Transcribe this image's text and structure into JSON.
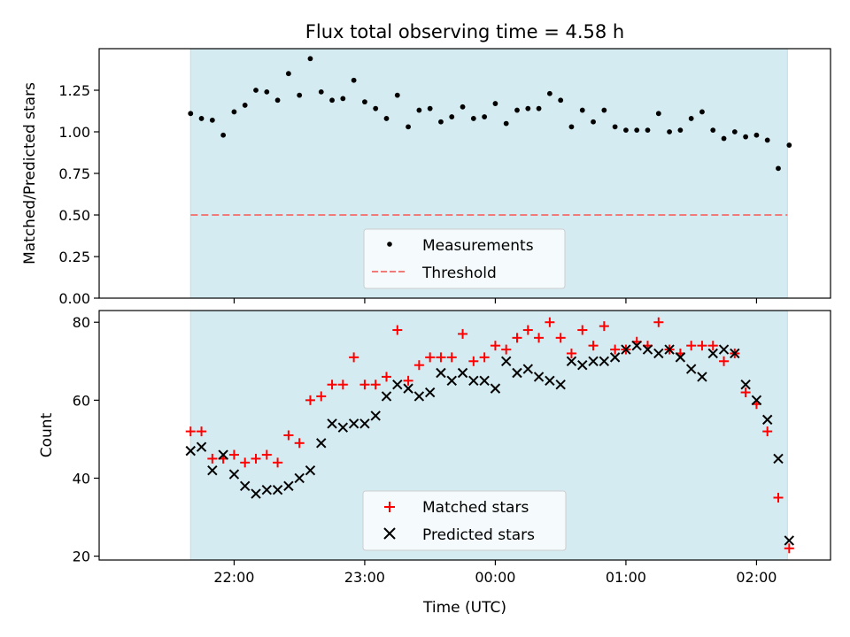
{
  "chart_data": [
    {
      "type": "scatter",
      "title": "Flux total observing time = 4.58 h",
      "xlabel": "",
      "ylabel": "Matched/Predicted stars",
      "xlim": [
        -0.35,
        2.45
      ],
      "ylim": [
        0,
        1.5
      ],
      "shaded_span": [
        0.0,
        2.285
      ],
      "yticks": [
        0.0,
        0.25,
        0.5,
        0.75,
        1.0,
        1.25
      ],
      "ytick_labels": [
        "0.00",
        "0.25",
        "0.50",
        "0.75",
        "1.00",
        "1.25"
      ],
      "threshold": 0.5,
      "legend": {
        "placement": "lower center",
        "entries": [
          "Measurements",
          "Threshold"
        ]
      },
      "series": [
        {
          "name": "Measurements",
          "x": [
            0.0,
            0.0417,
            0.0833,
            0.125,
            0.1667,
            0.2083,
            0.25,
            0.2917,
            0.3333,
            0.375,
            0.4167,
            0.4583,
            0.5,
            0.5417,
            0.5833,
            0.625,
            0.6667,
            0.7083,
            0.75,
            0.7917,
            0.8333,
            0.875,
            0.9167,
            0.9583,
            1.0,
            1.0417,
            1.0833,
            1.125,
            1.1667,
            1.2083,
            1.25,
            1.2917,
            1.3333,
            1.375,
            1.4167,
            1.4583,
            1.5,
            1.5417,
            1.5833,
            1.625,
            1.6667,
            1.7083,
            1.75,
            1.7917,
            1.8333,
            1.875,
            1.9167,
            1.9583,
            2.0,
            2.0417,
            2.0833,
            2.125,
            2.1667,
            2.2083,
            2.25,
            2.2917
          ],
          "values": [
            1.11,
            1.08,
            1.07,
            0.98,
            1.12,
            1.16,
            1.25,
            1.24,
            1.19,
            1.35,
            1.22,
            1.44,
            1.24,
            1.19,
            1.2,
            1.31,
            1.18,
            1.14,
            1.08,
            1.22,
            1.03,
            1.13,
            1.14,
            1.06,
            1.09,
            1.15,
            1.08,
            1.09,
            1.17,
            1.05,
            1.13,
            1.14,
            1.14,
            1.23,
            1.19,
            1.03,
            1.13,
            1.06,
            1.13,
            1.03,
            1.01,
            1.01,
            1.01,
            1.11,
            1.0,
            1.01,
            1.08,
            1.12,
            1.01,
            0.96,
            1.0,
            0.97,
            0.98,
            0.95,
            0.78,
            0.92
          ]
        }
      ]
    },
    {
      "type": "scatter",
      "title": "",
      "xlabel": "Time (UTC)",
      "ylabel": "Count",
      "xlim": [
        -0.35,
        2.45
      ],
      "ylim": [
        19,
        83
      ],
      "shaded_span": [
        0.0,
        2.285
      ],
      "yticks": [
        20,
        40,
        60,
        80
      ],
      "ytick_labels": [
        "20",
        "40",
        "60",
        "80"
      ],
      "xticks": [
        0.1667,
        0.6667,
        1.1667,
        1.6667,
        2.1667
      ],
      "xtick_labels": [
        "22:00",
        "23:00",
        "00:00",
        "01:00",
        "02:00"
      ],
      "legend": {
        "placement": "lower center",
        "entries": [
          "Matched stars",
          "Predicted stars"
        ]
      },
      "series": [
        {
          "name": "Matched stars",
          "x": [
            0.0,
            0.0417,
            0.0833,
            0.125,
            0.1667,
            0.2083,
            0.25,
            0.2917,
            0.3333,
            0.375,
            0.4167,
            0.4583,
            0.5,
            0.5417,
            0.5833,
            0.625,
            0.6667,
            0.7083,
            0.75,
            0.7917,
            0.8333,
            0.875,
            0.9167,
            0.9583,
            1.0,
            1.0417,
            1.0833,
            1.125,
            1.1667,
            1.2083,
            1.25,
            1.2917,
            1.3333,
            1.375,
            1.4167,
            1.4583,
            1.5,
            1.5417,
            1.5833,
            1.625,
            1.6667,
            1.7083,
            1.75,
            1.7917,
            1.8333,
            1.875,
            1.9167,
            1.9583,
            2.0,
            2.0417,
            2.0833,
            2.125,
            2.1667,
            2.2083,
            2.25,
            2.2917
          ],
          "values": [
            52,
            52,
            45,
            45,
            46,
            44,
            45,
            46,
            44,
            51,
            49,
            60,
            61,
            64,
            64,
            71,
            64,
            64,
            66,
            78,
            65,
            69,
            71,
            71,
            71,
            77,
            70,
            71,
            74,
            73,
            76,
            78,
            76,
            80,
            76,
            72,
            78,
            74,
            79,
            73,
            73,
            75,
            74,
            80,
            73,
            72,
            74,
            74,
            74,
            70,
            72,
            62,
            59,
            52,
            35,
            22
          ]
        },
        {
          "name": "Predicted stars",
          "x": [
            0.0,
            0.0417,
            0.0833,
            0.125,
            0.1667,
            0.2083,
            0.25,
            0.2917,
            0.3333,
            0.375,
            0.4167,
            0.4583,
            0.5,
            0.5417,
            0.5833,
            0.625,
            0.6667,
            0.7083,
            0.75,
            0.7917,
            0.8333,
            0.875,
            0.9167,
            0.9583,
            1.0,
            1.0417,
            1.0833,
            1.125,
            1.1667,
            1.2083,
            1.25,
            1.2917,
            1.3333,
            1.375,
            1.4167,
            1.4583,
            1.5,
            1.5417,
            1.5833,
            1.625,
            1.6667,
            1.7083,
            1.75,
            1.7917,
            1.8333,
            1.875,
            1.9167,
            1.9583,
            2.0,
            2.0417,
            2.0833,
            2.125,
            2.1667,
            2.2083,
            2.25,
            2.2917
          ],
          "values": [
            47,
            48,
            42,
            46,
            41,
            38,
            36,
            37,
            37,
            38,
            40,
            42,
            49,
            54,
            53,
            54,
            54,
            56,
            61,
            64,
            63,
            61,
            62,
            67,
            65,
            67,
            65,
            65,
            63,
            70,
            67,
            68,
            66,
            65,
            64,
            70,
            69,
            70,
            70,
            71,
            73,
            74,
            73,
            72,
            73,
            71,
            68,
            66,
            72,
            73,
            72,
            64,
            60,
            55,
            45,
            24
          ]
        }
      ]
    }
  ],
  "colors": {
    "shade": "#d4ebf1",
    "measurement": "#000000",
    "threshold": "#ef7b7b",
    "matched": "#ff0000",
    "predicted": "#000000"
  }
}
